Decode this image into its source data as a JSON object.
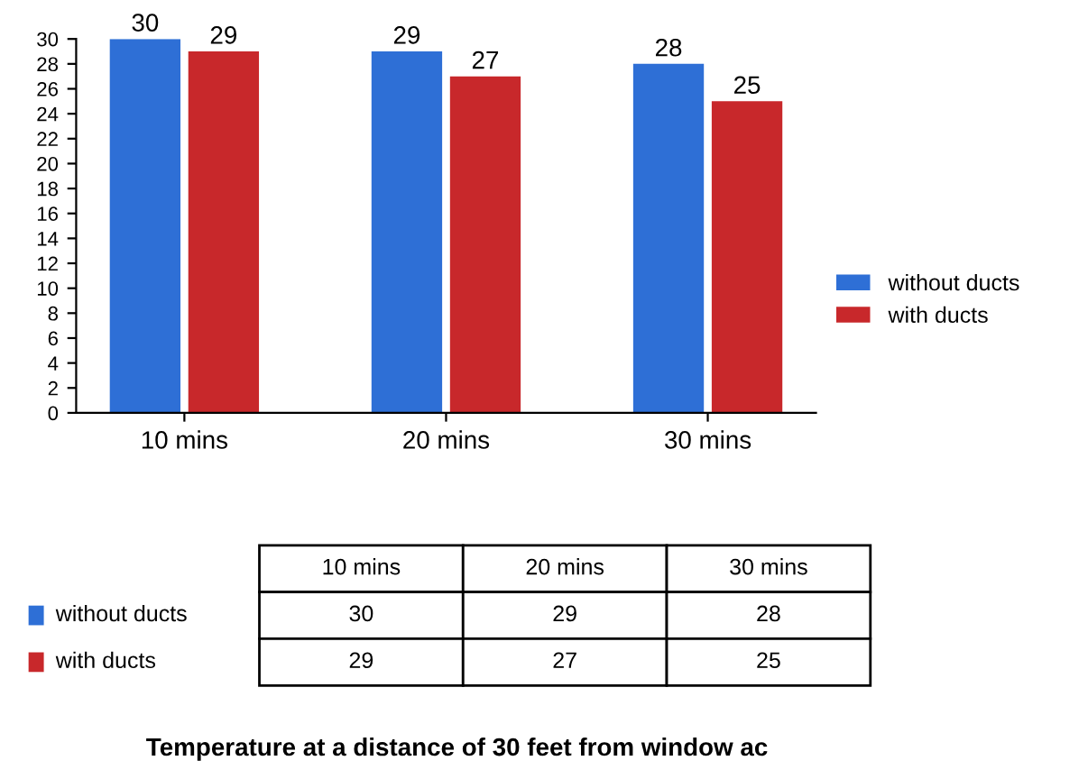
{
  "chart_data": {
    "type": "bar",
    "title": "Temperature at a distance of 30 feet from window ac",
    "categories": [
      "10 mins",
      "20 mins",
      "30 mins"
    ],
    "series": [
      {
        "name": "without ducts",
        "color": "#2e6fd6",
        "values": [
          30,
          29,
          28
        ],
        "value_labels": [
          "30",
          "29",
          "28"
        ]
      },
      {
        "name": "with ducts",
        "color": "#c8282b",
        "values": [
          29,
          27,
          25
        ],
        "value_labels": [
          "29",
          "27",
          "25"
        ]
      }
    ],
    "ylim": [
      0,
      30
    ],
    "yticks": [
      0,
      2,
      4,
      6,
      8,
      10,
      12,
      14,
      16,
      18,
      20,
      22,
      24,
      26,
      28,
      30
    ],
    "grid": false,
    "legend": "right",
    "data_labels": true
  }
}
